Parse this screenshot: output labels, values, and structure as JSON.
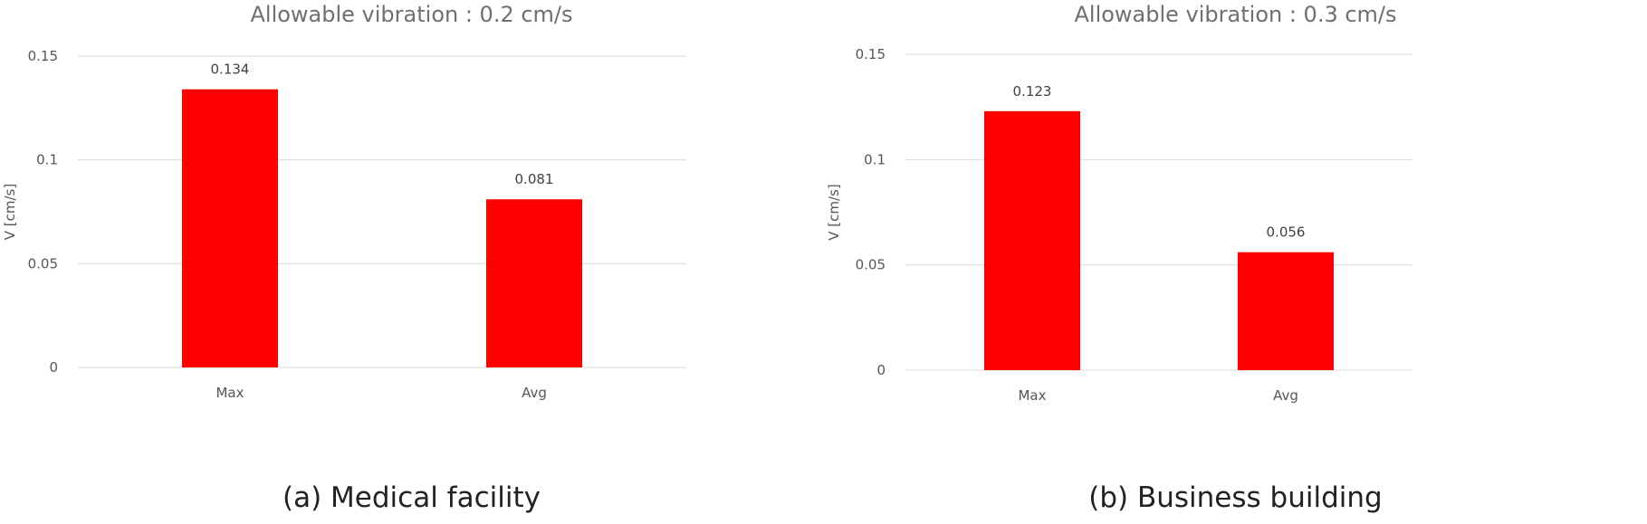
{
  "chart_data": [
    {
      "type": "bar",
      "title": "Allowable vibration : 0.2 cm/s",
      "caption": "(a) Medical facility",
      "categories": [
        "Max",
        "Avg"
      ],
      "values": [
        0.134,
        0.081
      ],
      "data_labels": [
        "0.134",
        "0.081"
      ],
      "ylabel": "V [cm/s]",
      "xlabel": "",
      "ylim": [
        0,
        0.15
      ],
      "yticks": [
        "0",
        "0.05",
        "0.1",
        "0.15"
      ],
      "grid": true,
      "bar_color": "#ff0000"
    },
    {
      "type": "bar",
      "title": "Allowable vibration : 0.3 cm/s",
      "caption": "(b) Business building",
      "categories": [
        "Max",
        "Avg"
      ],
      "values": [
        0.123,
        0.056
      ],
      "data_labels": [
        "0.123",
        "0.056"
      ],
      "ylabel": "V [cm/s]",
      "xlabel": "",
      "ylim": [
        0,
        0.15
      ],
      "yticks": [
        "0",
        "0.05",
        "0.1",
        "0.15"
      ],
      "grid": true,
      "bar_color": "#ff0000"
    }
  ]
}
